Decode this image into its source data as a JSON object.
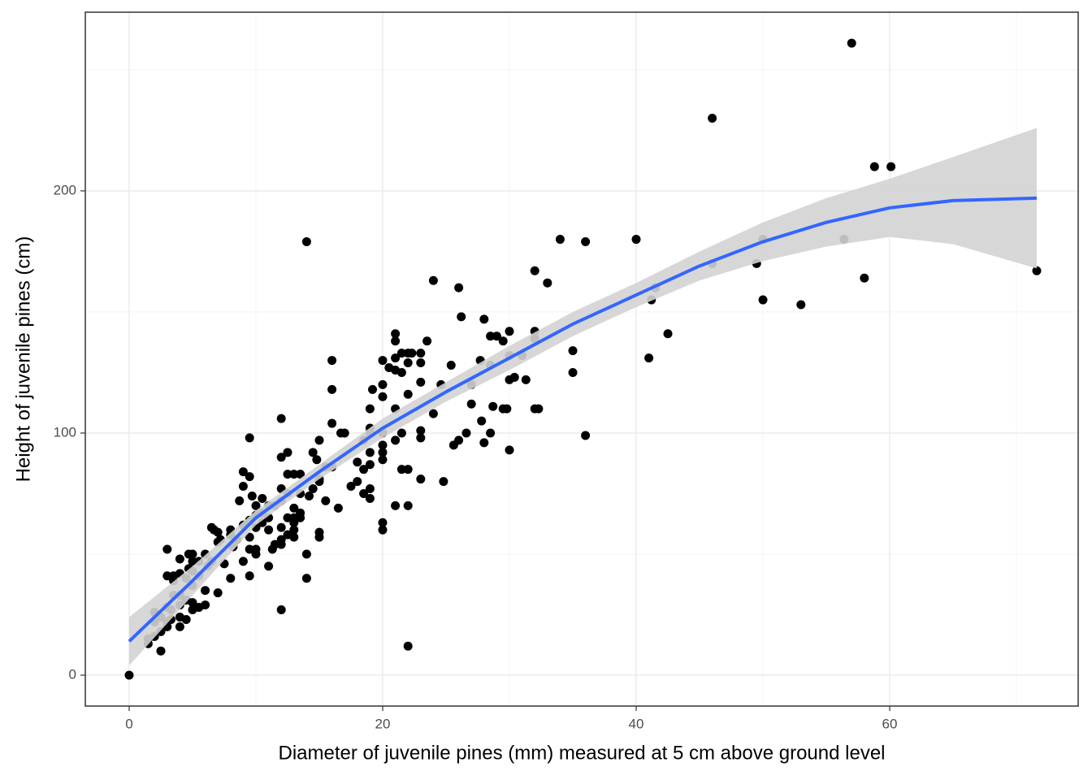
{
  "chart_data": {
    "type": "scatter",
    "x_label": "Diameter of juvenile pines (mm) measured at 5 cm above ground level",
    "y_label": "Height of juvenile pines (cm)",
    "xlim": [
      -3.46,
      74.87
    ],
    "ylim": [
      -12.75,
      273.8
    ],
    "xticks": [
      0,
      20,
      40,
      60
    ],
    "yticks": [
      0,
      100,
      200
    ],
    "grid": true,
    "points": {
      "color": "#000000",
      "x": [
        57,
        46,
        58.8,
        60.1,
        56.4,
        50,
        40,
        34,
        36,
        14,
        71.6,
        58,
        49.5,
        46,
        50,
        53,
        41.5,
        41.2,
        42.5,
        41,
        36,
        35,
        35,
        33,
        32,
        32,
        32,
        32.3,
        32,
        31.3,
        31,
        30,
        30,
        30,
        30.4,
        29.8,
        29.5,
        30,
        29.5,
        29,
        28.5,
        28.5,
        28.7,
        28.5,
        28,
        27.7,
        27.8,
        28,
        27,
        27,
        26.6,
        26.2,
        26,
        26,
        25.6,
        25.4,
        24.6,
        24.8,
        24,
        24,
        23.5,
        23,
        23,
        23,
        23,
        23,
        23,
        22.3,
        22,
        22,
        22,
        22,
        21.5,
        22,
        22,
        21.5,
        21,
        21,
        21,
        21,
        21.5,
        21,
        21,
        21.5,
        21,
        20.5,
        20,
        20,
        20,
        20,
        20,
        20,
        20,
        20,
        20,
        19.2,
        19,
        19,
        19,
        19,
        19,
        19,
        19,
        18.5,
        18.5,
        18.5,
        18,
        18,
        17.5,
        17,
        16.7,
        16.5,
        16,
        16,
        16,
        16,
        15.5,
        15.5,
        15,
        15,
        15,
        15,
        15,
        14.5,
        14.8,
        14.5,
        14.2,
        14,
        14,
        13.5,
        13.5,
        13.5,
        13.5,
        13,
        13,
        13,
        13,
        13,
        13,
        12.5,
        12.5,
        12.5,
        12.5,
        12.5,
        12,
        12,
        12,
        12,
        12,
        12,
        12,
        12,
        11.5,
        11.5,
        11.3,
        11,
        11,
        11,
        11,
        10.5,
        10.5,
        10.5,
        10,
        10,
        10,
        10,
        10,
        9.7,
        9.5,
        9.5,
        9.5,
        9.5,
        9.5,
        9.5,
        9,
        9,
        9,
        9,
        8.7,
        8.5,
        8.2,
        8,
        8,
        8,
        7.5,
        7.2,
        7,
        7,
        7,
        6.5,
        6.7,
        6.5,
        6.2,
        6,
        6,
        6,
        5.5,
        5.5,
        5.5,
        5,
        5,
        5,
        5,
        5,
        5,
        4.7,
        4.7,
        4.5,
        4.5,
        4.5,
        4,
        4,
        4,
        4,
        4,
        4,
        3.5,
        3.5,
        3.5,
        3.3,
        3.3,
        3,
        3,
        3,
        3,
        3,
        2.5,
        2.5,
        2.5,
        2,
        2,
        2,
        1.5,
        1.5,
        0
      ],
      "y": [
        261,
        230,
        210,
        210,
        180,
        180,
        180,
        180,
        179,
        179,
        167,
        164,
        170,
        170,
        155,
        153,
        160,
        155,
        141,
        131,
        99,
        134,
        125,
        162,
        167,
        142,
        139,
        110,
        110,
        122,
        132,
        142,
        132,
        122,
        123,
        110,
        110,
        93,
        138,
        140,
        140,
        128,
        111,
        100,
        147,
        130,
        105,
        96,
        120,
        112,
        100,
        148,
        160,
        97,
        95,
        128,
        120,
        80,
        163,
        108,
        138,
        133,
        129,
        121,
        101,
        98,
        81,
        133,
        133,
        129,
        116,
        85,
        85,
        70,
        12,
        133,
        141,
        138,
        131,
        126,
        125,
        110,
        97,
        100,
        70,
        127,
        130,
        120,
        115,
        100,
        95,
        92,
        89,
        63,
        60,
        118,
        110,
        102,
        100,
        92,
        87,
        77,
        73,
        97,
        85,
        75,
        80,
        88,
        78,
        100,
        100,
        69,
        130,
        118,
        104,
        86,
        86,
        72,
        97,
        81,
        80,
        59,
        57,
        92,
        89,
        77,
        74,
        50,
        40,
        83,
        75,
        67,
        65,
        83,
        69,
        65,
        63,
        60,
        57,
        92,
        83,
        75,
        65,
        58,
        106,
        90,
        77,
        72,
        61,
        56,
        54,
        27,
        70,
        54,
        52,
        70,
        65,
        60,
        45,
        73,
        67,
        63,
        70,
        66,
        61,
        52,
        50,
        74,
        98,
        82,
        64,
        57,
        52,
        41,
        84,
        78,
        62,
        47,
        72,
        56,
        53,
        60,
        58,
        40,
        46,
        56,
        59,
        55,
        34,
        61,
        60,
        47,
        45,
        50,
        35,
        29,
        47,
        41,
        28,
        50,
        47,
        43,
        37,
        30,
        27,
        50,
        44,
        40,
        31,
        23,
        48,
        42,
        33,
        29,
        24,
        20,
        41,
        39,
        33,
        27,
        23,
        52,
        41,
        28,
        22,
        20,
        24,
        18,
        10,
        26,
        22,
        16,
        15,
        13,
        0
      ]
    },
    "smooth": {
      "color": "#3366ff",
      "band_color": "#d3d3d3",
      "x": [
        0,
        5,
        10,
        15,
        20,
        25,
        30,
        35,
        40,
        45,
        50,
        55,
        60,
        65,
        71.6
      ],
      "y": [
        14,
        39,
        65,
        84,
        102,
        117,
        131,
        145,
        157,
        169,
        179,
        187,
        193,
        196,
        197
      ],
      "lower": [
        4,
        33,
        62,
        81,
        98,
        113,
        126,
        140,
        152,
        163,
        171,
        177,
        181,
        178,
        168
      ],
      "upper": [
        24,
        45,
        68,
        87,
        106,
        121,
        136,
        150,
        162,
        175,
        187,
        197,
        205,
        214,
        226
      ]
    }
  }
}
